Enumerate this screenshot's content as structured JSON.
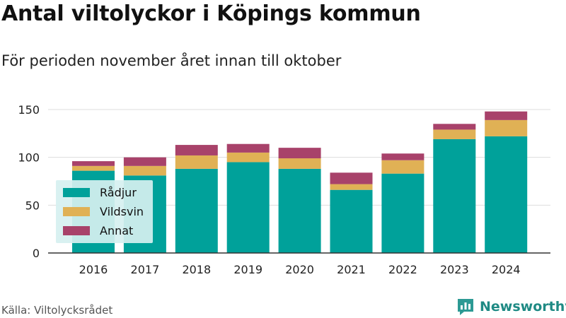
{
  "title": "Antal viltolyckor i Köpings kommun",
  "subtitle": "För perioden november året innan till oktober",
  "source": "Källa: Viltolycksrådet",
  "brand": {
    "name": "Newsworthy",
    "icon": "bar-chart-logo-icon",
    "color": "#2c9a94"
  },
  "chart_data": {
    "type": "bar",
    "stacked": true,
    "title": "Antal viltolyckor i Köpings kommun",
    "subtitle": "För perioden november året innan till oktober",
    "categories": [
      "2016",
      "2017",
      "2018",
      "2019",
      "2020",
      "2021",
      "2022",
      "2023",
      "2024"
    ],
    "series": [
      {
        "name": "Rådjur",
        "color": "#00a19a",
        "values": [
          86,
          81,
          88,
          95,
          88,
          66,
          83,
          119,
          122
        ]
      },
      {
        "name": "Vildsvin",
        "color": "#e0b155",
        "values": [
          5,
          10,
          14,
          10,
          11,
          6,
          14,
          10,
          17
        ]
      },
      {
        "name": "Annat",
        "color": "#a8426a",
        "values": [
          5,
          9,
          11,
          9,
          11,
          12,
          7,
          6,
          9
        ]
      }
    ],
    "ylim": [
      0,
      150
    ],
    "yticks": [
      0,
      50,
      100,
      150
    ],
    "grid": true,
    "legend": "bottom-left",
    "xlabel": "",
    "ylabel": ""
  }
}
